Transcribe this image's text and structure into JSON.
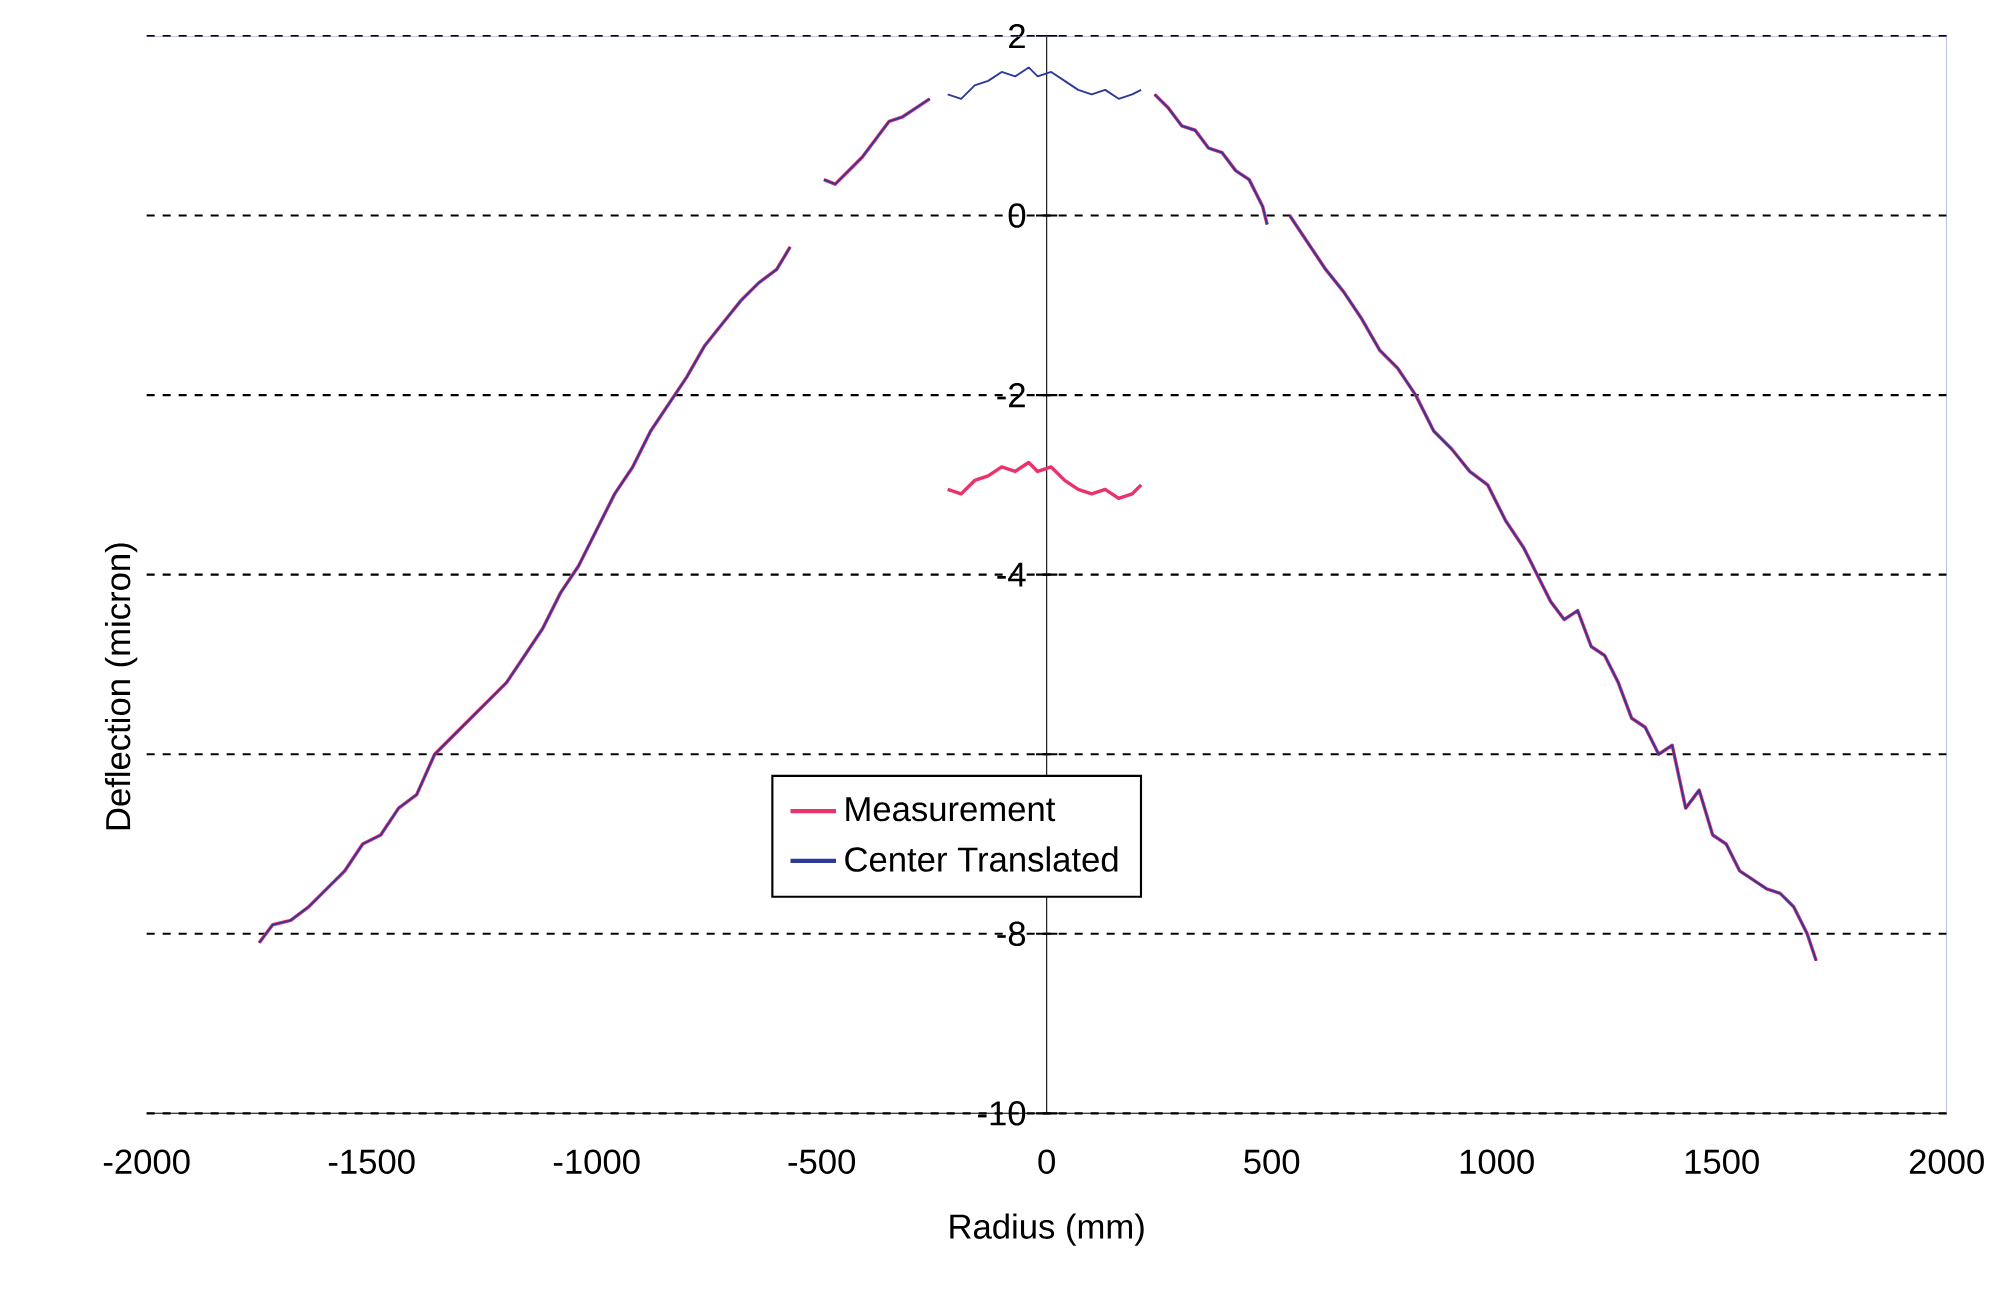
{
  "chart_data": {
    "type": "line",
    "xlabel": "Radius (mm)",
    "ylabel": "Deflection (micron)",
    "xlim": [
      -2000,
      2000
    ],
    "ylim": [
      -10,
      2
    ],
    "xticks": [
      -2000,
      -1500,
      -1000,
      -500,
      0,
      500,
      1000,
      1500,
      2000
    ],
    "yticks": [
      2,
      0,
      -2,
      -4,
      {
        "value": -6,
        "label": null
      },
      -8,
      -10
    ],
    "grid": "y",
    "legend": "bottom",
    "marker": "none",
    "line_style": "solid",
    "series": [
      {
        "name": "Measurement",
        "color": "#e8336b",
        "x": [
          -1750,
          -1720,
          -1680,
          -1640,
          -1600,
          -1560,
          -1520,
          -1480,
          -1440,
          -1400,
          -1360,
          -1320,
          -1280,
          -1240,
          -1200,
          -1160,
          -1120,
          -1080,
          -1040,
          -1000,
          -960,
          -920,
          -880,
          -840,
          -800,
          -760,
          -720,
          -680,
          -640,
          -600,
          -570,
          -530,
          -495,
          -470,
          -440,
          -410,
          -380,
          -350,
          -320,
          -290,
          -260,
          -240,
          -220,
          -190,
          -160,
          -130,
          -100,
          -70,
          -40,
          -20,
          10,
          40,
          70,
          100,
          130,
          160,
          190,
          210,
          225,
          240,
          270,
          300,
          330,
          360,
          390,
          420,
          450,
          480,
          490,
          515,
          540,
          580,
          620,
          660,
          700,
          740,
          780,
          820,
          860,
          900,
          940,
          980,
          1020,
          1060,
          1090,
          1120,
          1150,
          1180,
          1210,
          1240,
          1270,
          1300,
          1330,
          1360,
          1390,
          1420,
          1450,
          1480,
          1510,
          1540,
          1570,
          1600,
          1630,
          1660,
          1690,
          1710
        ],
        "values": [
          -8.1,
          -7.9,
          -7.85,
          -7.7,
          -7.5,
          -7.3,
          -7.0,
          -6.9,
          -6.6,
          -6.45,
          -6.0,
          -5.8,
          -5.6,
          -5.4,
          -5.2,
          -4.9,
          -4.6,
          -4.2,
          -3.9,
          -3.5,
          -3.1,
          -2.8,
          -2.4,
          -2.1,
          -1.8,
          -1.45,
          -1.2,
          -0.95,
          -0.75,
          -0.6,
          -0.35,
          null,
          0.4,
          0.35,
          0.5,
          0.65,
          0.85,
          1.05,
          1.1,
          1.2,
          1.3,
          null,
          -3.05,
          -3.1,
          -2.95,
          -2.9,
          -2.8,
          -2.85,
          -2.75,
          -2.85,
          -2.8,
          -2.95,
          -3.05,
          -3.1,
          -3.05,
          -3.15,
          -3.1,
          -3.0,
          null,
          1.35,
          1.2,
          1.0,
          0.95,
          0.75,
          0.7,
          0.5,
          0.4,
          0.1,
          -0.1,
          null,
          0.0,
          -0.3,
          -0.6,
          -0.85,
          -1.15,
          -1.5,
          -1.7,
          -2.0,
          -2.4,
          -2.6,
          -2.85,
          -3.0,
          -3.4,
          -3.7,
          -4.0,
          -4.3,
          -4.5,
          -4.4,
          -4.8,
          -4.9,
          -5.2,
          -5.6,
          -5.7,
          -6.0,
          -5.9,
          -6.6,
          -6.4,
          -6.9,
          -7.0,
          -7.3,
          -7.4,
          -7.5,
          -7.55,
          -7.7,
          -8.0,
          -8.3
        ]
      },
      {
        "name": "Center Translated",
        "color": "#2b3a9b",
        "x": [
          -1750,
          -1720,
          -1680,
          -1640,
          -1600,
          -1560,
          -1520,
          -1480,
          -1440,
          -1400,
          -1360,
          -1320,
          -1280,
          -1240,
          -1200,
          -1160,
          -1120,
          -1080,
          -1040,
          -1000,
          -960,
          -920,
          -880,
          -840,
          -800,
          -760,
          -720,
          -680,
          -640,
          -600,
          -570,
          -530,
          -495,
          -470,
          -440,
          -410,
          -380,
          -350,
          -320,
          -290,
          -260,
          -240,
          -220,
          -190,
          -160,
          -130,
          -100,
          -70,
          -40,
          -20,
          10,
          40,
          70,
          100,
          130,
          160,
          190,
          210,
          225,
          240,
          270,
          300,
          330,
          360,
          390,
          420,
          450,
          480,
          490,
          515,
          540,
          580,
          620,
          660,
          700,
          740,
          780,
          820,
          860,
          900,
          940,
          980,
          1020,
          1060,
          1090,
          1120,
          1150,
          1180,
          1210,
          1240,
          1270,
          1300,
          1330,
          1360,
          1390,
          1420,
          1450,
          1480,
          1510,
          1540,
          1570,
          1600,
          1630,
          1660,
          1690,
          1710
        ],
        "values": [
          -8.1,
          -7.9,
          -7.85,
          -7.7,
          -7.5,
          -7.3,
          -7.0,
          -6.9,
          -6.6,
          -6.45,
          -6.0,
          -5.8,
          -5.6,
          -5.4,
          -5.2,
          -4.9,
          -4.6,
          -4.2,
          -3.9,
          -3.5,
          -3.1,
          -2.8,
          -2.4,
          -2.1,
          -1.8,
          -1.45,
          -1.2,
          -0.95,
          -0.75,
          -0.6,
          -0.35,
          null,
          0.4,
          0.35,
          0.5,
          0.65,
          0.85,
          1.05,
          1.1,
          1.2,
          1.3,
          null,
          1.35,
          1.3,
          1.45,
          1.5,
          1.6,
          1.55,
          1.65,
          1.55,
          1.6,
          1.5,
          1.4,
          1.35,
          1.4,
          1.3,
          1.35,
          1.4,
          null,
          1.35,
          1.2,
          1.0,
          0.95,
          0.75,
          0.7,
          0.5,
          0.4,
          0.1,
          -0.1,
          null,
          0.0,
          -0.3,
          -0.6,
          -0.85,
          -1.15,
          -1.5,
          -1.7,
          -2.0,
          -2.4,
          -2.6,
          -2.85,
          -3.0,
          -3.4,
          -3.7,
          -4.0,
          -4.3,
          -4.5,
          -4.4,
          -4.8,
          -4.9,
          -5.2,
          -5.6,
          -5.7,
          -6.0,
          -5.9,
          -6.6,
          -6.4,
          -6.9,
          -7.0,
          -7.3,
          -7.4,
          -7.5,
          -7.55,
          -7.7,
          -8.0,
          -8.3
        ]
      }
    ]
  }
}
